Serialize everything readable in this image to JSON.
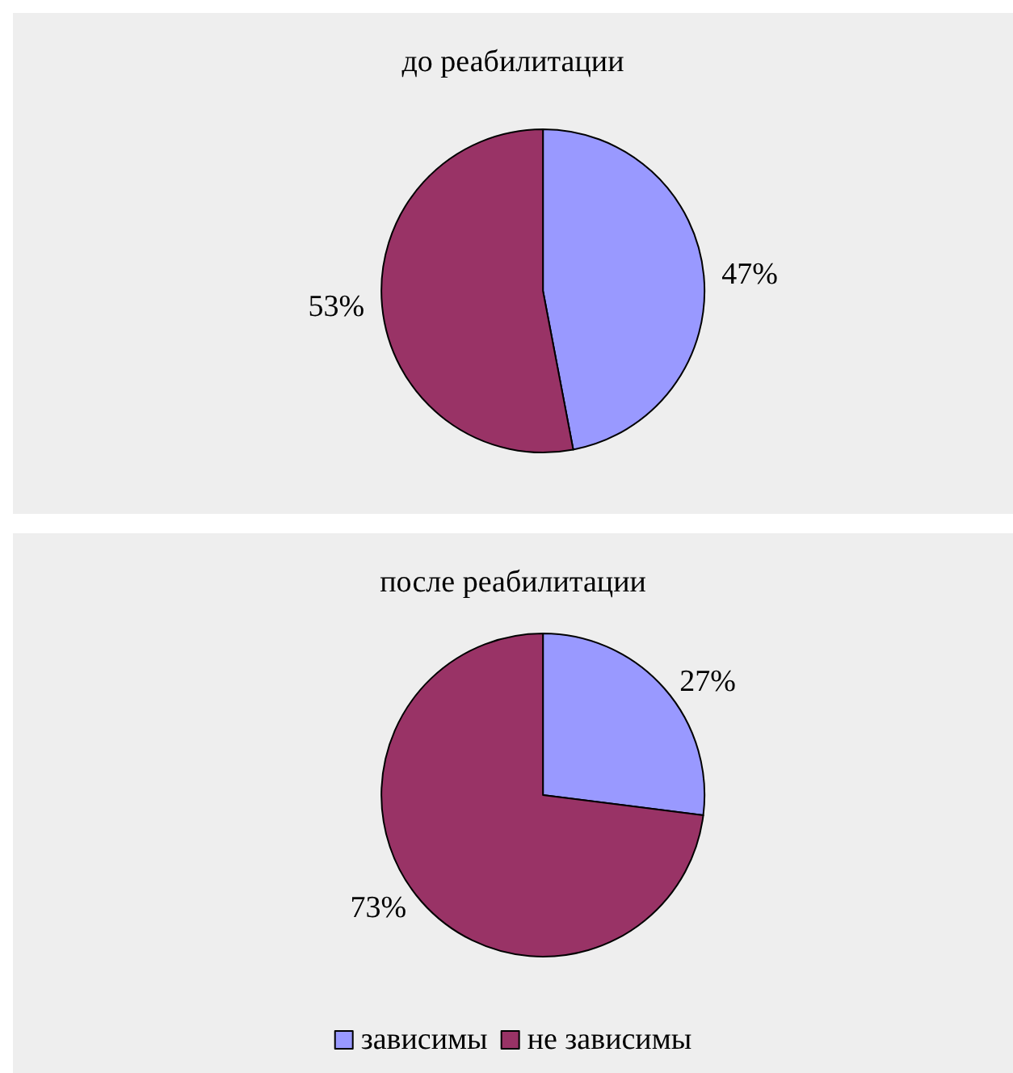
{
  "chart_data": [
    {
      "type": "pie",
      "title": "до реабилитации",
      "categories": [
        null,
        null
      ],
      "values": [
        47,
        53
      ],
      "colors": [
        "#9999ff",
        "#993366"
      ],
      "value_labels": [
        "47%",
        "53%"
      ]
    },
    {
      "type": "pie",
      "title": "после реабилитации",
      "categories": [
        "зависимы",
        "не зависимы"
      ],
      "values": [
        27,
        73
      ],
      "colors": [
        "#9999ff",
        "#993366"
      ],
      "value_labels": [
        "27%",
        "73%"
      ],
      "legend": "bottom"
    }
  ]
}
